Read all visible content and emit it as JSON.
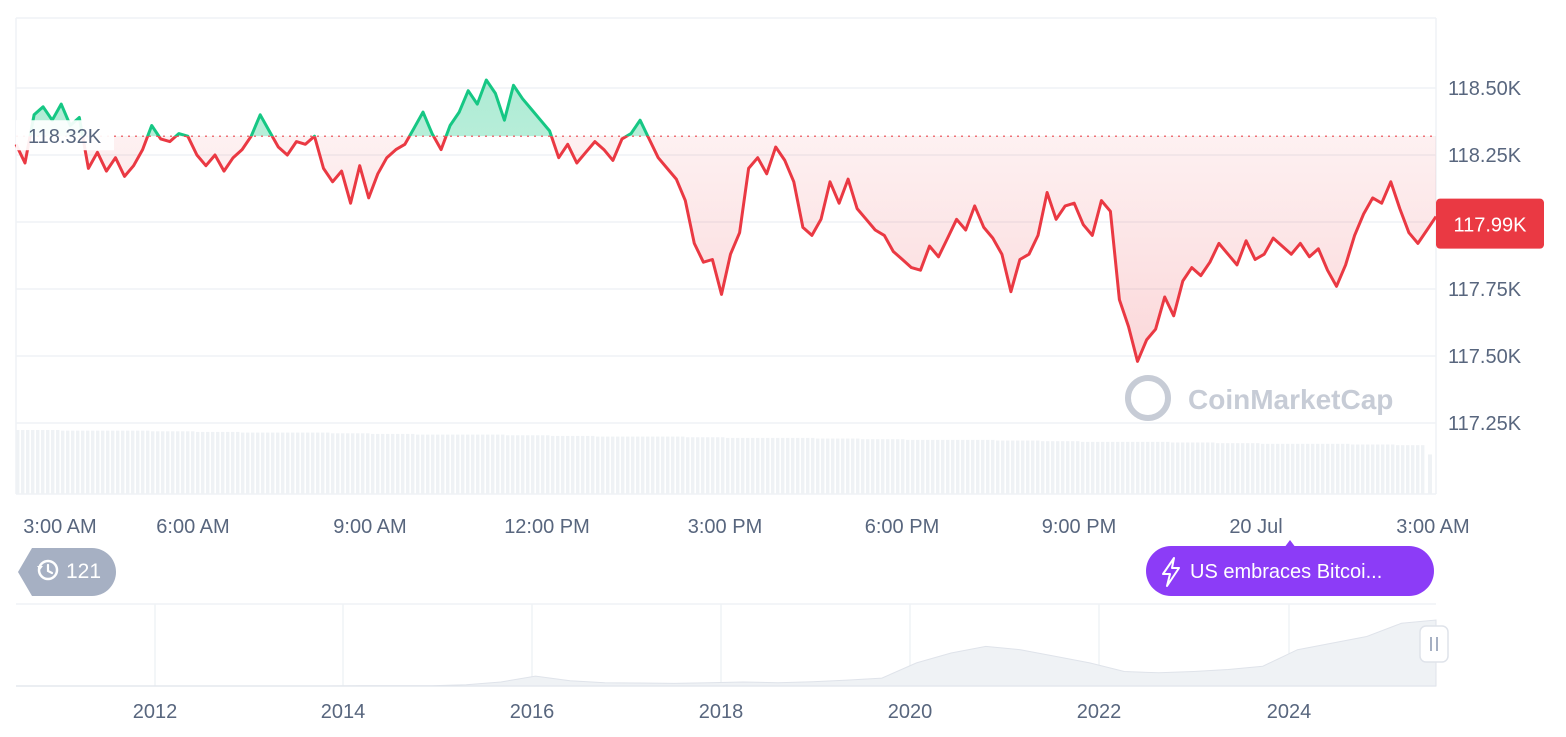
{
  "chart_data": {
    "type": "area",
    "price_axis": {
      "ticks": [
        117.25,
        117.5,
        117.75,
        118.0,
        118.25,
        118.5
      ],
      "tick_labels": [
        "117.25K",
        "117.50K",
        "117.75K",
        "",
        "118.25K",
        "118.50K"
      ],
      "ylim": [
        117.0,
        118.75
      ]
    },
    "time_axis": {
      "tick_labels": [
        "3:00 AM",
        "6:00 AM",
        "9:00 AM",
        "12:00 PM",
        "3:00 PM",
        "6:00 PM",
        "9:00 PM",
        "20 Jul",
        "3:00 AM"
      ]
    },
    "reference_price": {
      "value": 118.32,
      "label": "118.32K"
    },
    "current_price": {
      "value": 117.99,
      "label": "117.99K",
      "color": "#ea3943"
    },
    "colors": {
      "above": "#16c784",
      "below": "#ea3943",
      "volume": "#eff2f5"
    },
    "series": [
      {
        "values": [
          118.29,
          118.22,
          118.4,
          118.43,
          118.38,
          118.44,
          118.36,
          118.39,
          118.2,
          118.26,
          118.19,
          118.24,
          118.17,
          118.21,
          118.27,
          118.36,
          118.31,
          118.3,
          118.33,
          118.32,
          118.25,
          118.21,
          118.25,
          118.19,
          118.24,
          118.27,
          118.32,
          118.4,
          118.34,
          118.28,
          118.25,
          118.3,
          118.29,
          118.32,
          118.2,
          118.15,
          118.19,
          118.07,
          118.21,
          118.09,
          118.18,
          118.24,
          118.27,
          118.29,
          118.35,
          118.41,
          118.33,
          118.27,
          118.36,
          118.41,
          118.49,
          118.44,
          118.53,
          118.48,
          118.38,
          118.51,
          118.46,
          118.42,
          118.38,
          118.34,
          118.24,
          118.29,
          118.22,
          118.26,
          118.3,
          118.27,
          118.23,
          118.31,
          118.33,
          118.38,
          118.31,
          118.24,
          118.2,
          118.16,
          118.08,
          117.92,
          117.85,
          117.86,
          117.73,
          117.88,
          117.96,
          118.2,
          118.24,
          118.18,
          118.28,
          118.23,
          118.15,
          117.98,
          117.95,
          118.01,
          118.15,
          118.07,
          118.16,
          118.05,
          118.01,
          117.97,
          117.95,
          117.89,
          117.86,
          117.83,
          117.82,
          117.91,
          117.87,
          117.94,
          118.01,
          117.97,
          118.06,
          117.98,
          117.94,
          117.88,
          117.74,
          117.86,
          117.88,
          117.95,
          118.11,
          118.01,
          118.06,
          118.07,
          117.99,
          117.95,
          118.08,
          118.04,
          117.71,
          117.61,
          117.48,
          117.56,
          117.6,
          117.72,
          117.65,
          117.78,
          117.83,
          117.8,
          117.85,
          117.92,
          117.88,
          117.84,
          117.93,
          117.86,
          117.88,
          117.94,
          117.91,
          117.88,
          117.92,
          117.87,
          117.9,
          117.82,
          117.76,
          117.84,
          117.95,
          118.03,
          118.09,
          118.07,
          118.15,
          118.05,
          117.96,
          117.92,
          117.97,
          118.02
        ]
      }
    ],
    "volume": {
      "values": [
        0.97,
        0.96,
        0.96,
        0.95,
        0.94,
        0.93,
        0.93,
        0.92,
        0.91,
        0.9,
        0.9,
        0.89,
        0.88,
        0.87,
        0.87,
        0.86,
        0.85,
        0.85,
        0.84,
        0.83,
        0.82,
        0.82,
        0.81,
        0.8,
        0.79,
        0.79,
        0.78,
        0.77,
        0.76,
        0.76,
        0.75,
        0.74
      ]
    },
    "navigator": {
      "tick_labels": [
        "2012",
        "2014",
        "2016",
        "2018",
        "2020",
        "2022",
        "2024"
      ],
      "values": [
        0,
        0,
        0,
        0,
        0,
        0,
        0,
        0,
        0,
        0,
        0.003,
        0.004,
        0.005,
        0.02,
        0.06,
        0.15,
        0.08,
        0.05,
        0.045,
        0.04,
        0.05,
        0.06,
        0.05,
        0.065,
        0.09,
        0.12,
        0.35,
        0.5,
        0.6,
        0.55,
        0.45,
        0.35,
        0.22,
        0.2,
        0.22,
        0.25,
        0.3,
        0.55,
        0.65,
        0.75,
        0.95,
        1.0
      ]
    }
  },
  "controls": {
    "history_count": "121"
  },
  "news": {
    "headline": "US embraces Bitcoi..."
  },
  "watermark": {
    "text": "CoinMarketCap"
  }
}
